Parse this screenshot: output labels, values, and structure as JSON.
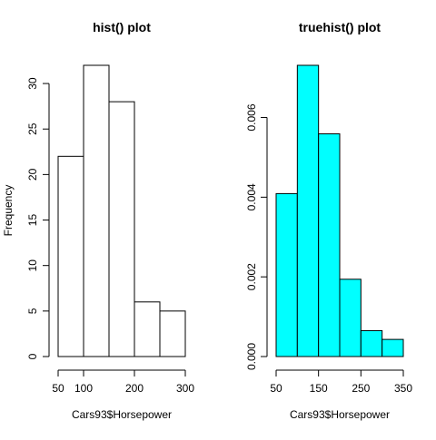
{
  "chart_data": [
    {
      "type": "bar",
      "title": "hist() plot",
      "xlabel": "Cars93$Horsepower",
      "ylabel": "Frequency",
      "bins": [
        [
          50,
          100
        ],
        [
          100,
          150
        ],
        [
          150,
          200
        ],
        [
          200,
          250
        ],
        [
          250,
          300
        ]
      ],
      "values": [
        22,
        32,
        28,
        6,
        5
      ],
      "fill": "#ffffff",
      "xticks": [
        50,
        100,
        200,
        300
      ],
      "xtick_labels": [
        "50",
        "100",
        "200",
        "300"
      ],
      "yticks": [
        0,
        5,
        10,
        15,
        20,
        25,
        30
      ],
      "ytick_labels": [
        "0",
        "5",
        "10",
        "15",
        "20",
        "25",
        "30"
      ],
      "xlim": [
        50,
        300
      ],
      "ylim": [
        0,
        32
      ]
    },
    {
      "type": "bar",
      "title": "truehist() plot",
      "xlabel": "Cars93$Horsepower",
      "ylabel": "",
      "bins": [
        [
          50,
          100
        ],
        [
          100,
          150
        ],
        [
          150,
          200
        ],
        [
          200,
          250
        ],
        [
          250,
          300
        ],
        [
          300,
          350
        ]
      ],
      "values": [
        0.00409,
        0.00731,
        0.00559,
        0.00194,
        0.00065,
        0.00043
      ],
      "fill": "#00ffff",
      "xticks": [
        50,
        150,
        250,
        350
      ],
      "xtick_labels": [
        "50",
        "150",
        "250",
        "350"
      ],
      "yticks": [
        0,
        0.002,
        0.004,
        0.006
      ],
      "ytick_labels": [
        "0.000",
        "0.002",
        "0.004",
        "0.006"
      ],
      "xlim": [
        50,
        350
      ],
      "ylim": [
        0,
        0.00731
      ]
    }
  ]
}
